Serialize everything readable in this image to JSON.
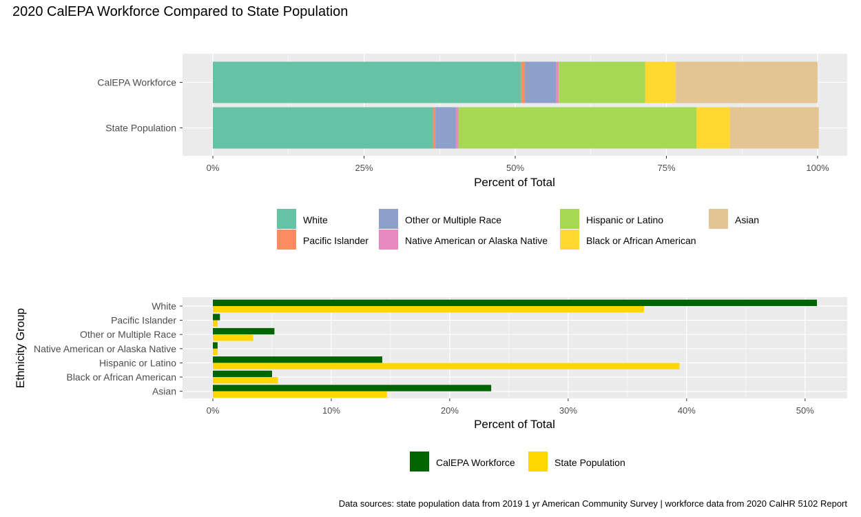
{
  "title": "2020 CalEPA Workforce Compared to State Population",
  "caption": "Data sources: state population data from 2019 1 yr American Community Survey  |  workforce data from 2020 CalHR 5102 Report",
  "colors": {
    "panel_bg": "#EBEBEB",
    "grid": "#FFFFFF",
    "axis_text": "#4D4D4D",
    "White": "#66C2A5",
    "Pacific Islander": "#FC8D62",
    "Other or Multiple Race": "#8DA0CB",
    "Native American or Alaska Native": "#E78AC3",
    "Hispanic or Latino": "#A6D854",
    "Black or African American": "#FFD92F",
    "Asian": "#E5C494",
    "CalEPA Workforce": "#006400",
    "State Population": "#FFD700"
  },
  "chart_data": [
    {
      "type": "bar",
      "orientation": "horizontal",
      "stacked": true,
      "categories": [
        "CalEPA Workforce",
        "State Population"
      ],
      "series": [
        {
          "name": "White",
          "values": [
            51.0,
            36.4
          ]
        },
        {
          "name": "Pacific Islander",
          "values": [
            0.6,
            0.4
          ]
        },
        {
          "name": "Other or Multiple Race",
          "values": [
            5.2,
            3.4
          ]
        },
        {
          "name": "Native American or Alaska Native",
          "values": [
            0.4,
            0.4
          ]
        },
        {
          "name": "Hispanic or Latino",
          "values": [
            14.3,
            39.4
          ]
        },
        {
          "name": "Black or African American",
          "values": [
            5.0,
            5.5
          ]
        },
        {
          "name": "Asian",
          "values": [
            23.5,
            14.7
          ]
        }
      ],
      "xlabel": "Percent of Total",
      "ylabel": "",
      "xlim": [
        0,
        100
      ],
      "xticks": [
        "0%",
        "25%",
        "50%",
        "75%",
        "100%"
      ],
      "xtick_values": [
        0,
        25,
        50,
        75,
        100
      ],
      "legend_position": "bottom",
      "legend_order": [
        "White",
        "Other or Multiple Race",
        "Hispanic or Latino",
        "Asian",
        "Pacific Islander",
        "Native American or Alaska Native",
        "Black or African American"
      ],
      "grid": true
    },
    {
      "type": "bar",
      "orientation": "horizontal",
      "stacked": false,
      "categories": [
        "White",
        "Pacific Islander",
        "Other or Multiple Race",
        "Native American or Alaska Native",
        "Hispanic or Latino",
        "Black or African American",
        "Asian"
      ],
      "series": [
        {
          "name": "CalEPA Workforce",
          "values": [
            51.0,
            0.6,
            5.2,
            0.4,
            14.3,
            5.0,
            23.5
          ]
        },
        {
          "name": "State Population",
          "values": [
            36.4,
            0.4,
            3.4,
            0.4,
            39.4,
            5.5,
            14.7
          ]
        }
      ],
      "xlabel": "Percent of Total",
      "ylabel": "Ethnicity Group",
      "xlim": [
        0,
        53.5
      ],
      "xticks": [
        "0%",
        "10%",
        "20%",
        "30%",
        "40%",
        "50%"
      ],
      "xtick_values": [
        0,
        10,
        20,
        30,
        40,
        50
      ],
      "legend_position": "bottom",
      "grid": true
    }
  ]
}
